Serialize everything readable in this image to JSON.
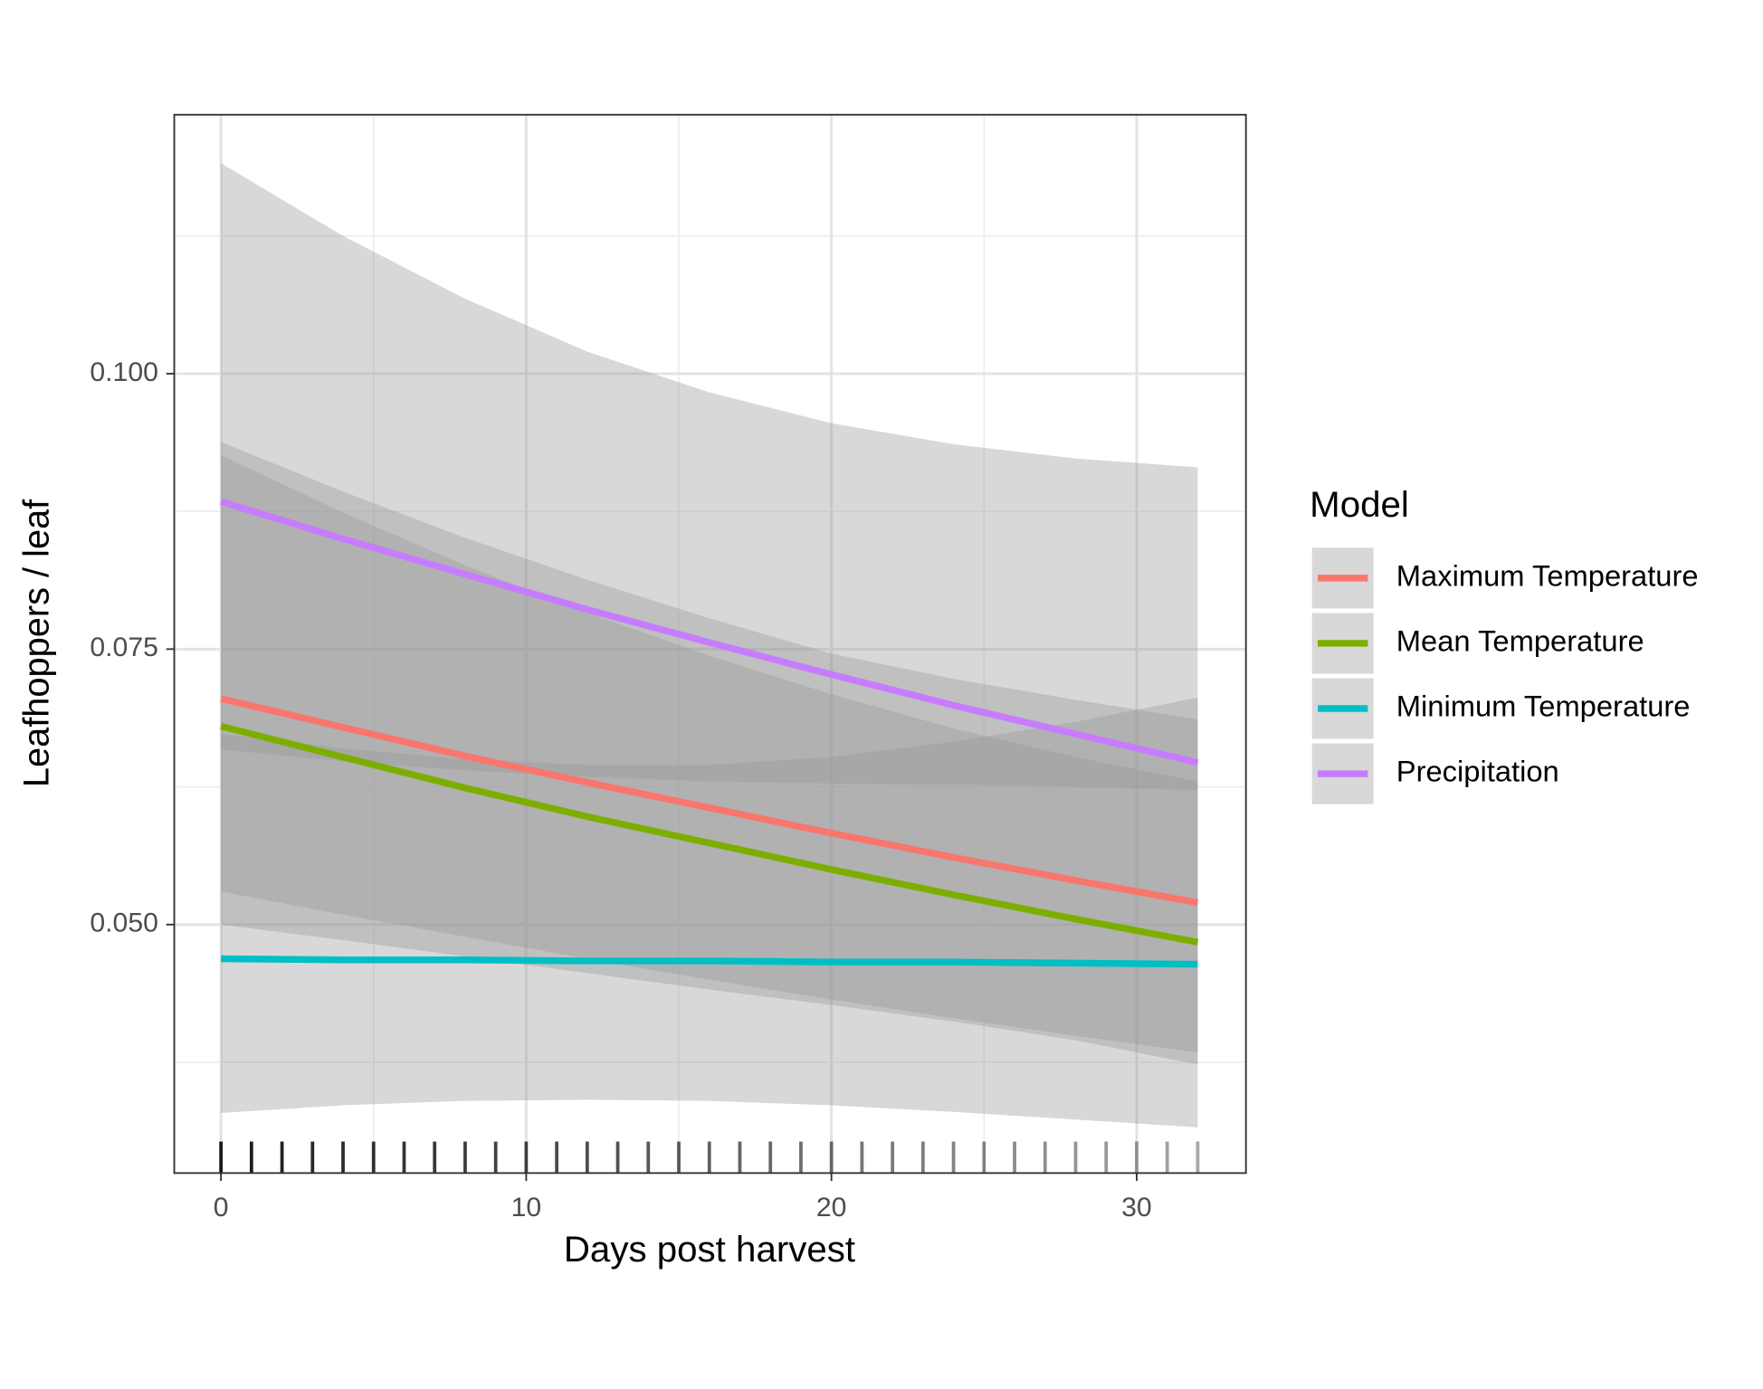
{
  "chart_data": {
    "type": "line",
    "x_label": "Days post harvest",
    "y_label": "Leafhoppers / leaf",
    "legend_title": "Model",
    "legend_position": "right",
    "grid": true,
    "xlim": [
      -1.53,
      33.58
    ],
    "ylim": [
      0.02745,
      0.1235
    ],
    "xticks": [
      0,
      10,
      20,
      30
    ],
    "yticks": [
      {
        "value": 0.05,
        "label": "0.050"
      },
      {
        "value": 0.075,
        "label": "0.075"
      },
      {
        "value": 0.1,
        "label": "0.100"
      }
    ],
    "xminor_grid": [
      5,
      15,
      25
    ],
    "yminor_grid": [
      0.0375,
      0.0625,
      0.0875,
      0.1125
    ],
    "ribbon_color": "#999999",
    "rug": [
      0,
      1,
      2,
      3,
      4,
      5,
      6,
      7,
      8,
      9,
      10,
      11,
      12,
      13,
      14,
      15,
      16,
      17,
      18,
      19,
      20,
      21,
      22,
      23,
      24,
      25,
      26,
      27,
      28,
      29,
      30,
      31,
      32
    ],
    "x": [
      0,
      4,
      8,
      12,
      16,
      20,
      24,
      28,
      32
    ],
    "series": [
      {
        "name": "Maximum Temperature",
        "color": "#f8766d",
        "values": [
          0.0705,
          0.0679,
          0.0653,
          0.0629,
          0.0606,
          0.0583,
          0.0561,
          0.054,
          0.052
        ],
        "lower": [
          0.053,
          0.0509,
          0.0489,
          0.0469,
          0.045,
          0.0432,
          0.0415,
          0.0399,
          0.0384
        ],
        "upper": [
          0.0938,
          0.0893,
          0.0851,
          0.0813,
          0.0778,
          0.0746,
          0.0723,
          0.0704,
          0.0686
        ]
      },
      {
        "name": "Mean Temperature",
        "color": "#7cae00",
        "values": [
          0.068,
          0.0652,
          0.0624,
          0.0598,
          0.0574,
          0.055,
          0.0527,
          0.0505,
          0.0484
        ],
        "lower": [
          0.05,
          0.0486,
          0.0471,
          0.0456,
          0.0441,
          0.0427,
          0.0412,
          0.0395,
          0.0373
        ],
        "upper": [
          0.0926,
          0.0874,
          0.0826,
          0.0783,
          0.0744,
          0.0709,
          0.0678,
          0.0652,
          0.063
        ]
      },
      {
        "name": "Minimum Temperature",
        "color": "#00bfc4",
        "values": [
          0.0469,
          0.0468,
          0.0468,
          0.0467,
          0.0467,
          0.0466,
          0.0466,
          0.0465,
          0.0464
        ],
        "lower": [
          0.0329,
          0.0336,
          0.034,
          0.0341,
          0.034,
          0.0336,
          0.033,
          0.0323,
          0.0316
        ],
        "upper": [
          0.0673,
          0.066,
          0.065,
          0.0645,
          0.0645,
          0.0652,
          0.0666,
          0.0684,
          0.0706
        ]
      },
      {
        "name": "Precipitation",
        "color": "#c77cff",
        "values": [
          0.0884,
          0.085,
          0.0818,
          0.0786,
          0.0756,
          0.0727,
          0.0699,
          0.0673,
          0.0647
        ],
        "lower": [
          0.0659,
          0.0648,
          0.064,
          0.0634,
          0.063,
          0.0628,
          0.0627,
          0.0625,
          0.0622
        ],
        "upper": [
          0.1191,
          0.1125,
          0.1068,
          0.102,
          0.0983,
          0.0955,
          0.0936,
          0.0923,
          0.0915
        ]
      }
    ]
  }
}
